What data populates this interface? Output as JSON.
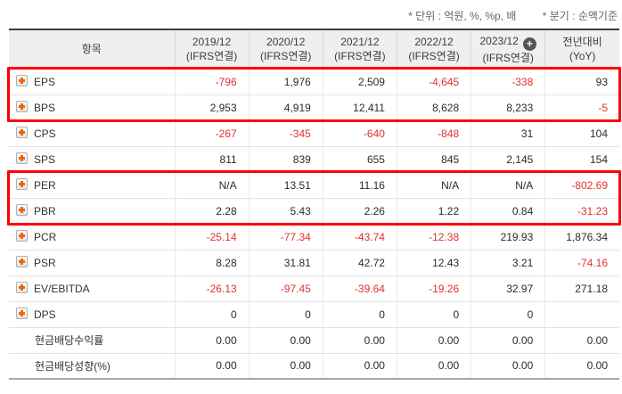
{
  "notes": {
    "unit": "* 단위 : 억원, %, %p, 배",
    "basis": "* 분기 : 순액기준"
  },
  "table": {
    "item_header": "항목",
    "columns": [
      {
        "period": "2019/12",
        "standard": "(IFRS연결)",
        "has_add_icon": false
      },
      {
        "period": "2020/12",
        "standard": "(IFRS연결)",
        "has_add_icon": false
      },
      {
        "period": "2021/12",
        "standard": "(IFRS연결)",
        "has_add_icon": false
      },
      {
        "period": "2022/12",
        "standard": "(IFRS연결)",
        "has_add_icon": false
      },
      {
        "period": "2023/12",
        "standard": "(IFRS연결)",
        "has_add_icon": true
      },
      {
        "period": "전년대비",
        "standard": "(YoY)",
        "has_add_icon": false
      }
    ],
    "add_icon_glyph": "+",
    "rows": [
      {
        "label": "EPS",
        "expandable": true,
        "values": [
          "-796",
          "1,976",
          "2,509",
          "-4,645",
          "-338",
          "93"
        ]
      },
      {
        "label": "BPS",
        "expandable": true,
        "values": [
          "2,953",
          "4,919",
          "12,411",
          "8,628",
          "8,233",
          "-5"
        ]
      },
      {
        "label": "CPS",
        "expandable": true,
        "values": [
          "-267",
          "-345",
          "-640",
          "-848",
          "31",
          "104"
        ]
      },
      {
        "label": "SPS",
        "expandable": true,
        "values": [
          "811",
          "839",
          "655",
          "845",
          "2,145",
          "154"
        ]
      },
      {
        "label": "PER",
        "expandable": true,
        "values": [
          "N/A",
          "13.51",
          "11.16",
          "N/A",
          "N/A",
          "-802.69"
        ]
      },
      {
        "label": "PBR",
        "expandable": true,
        "values": [
          "2.28",
          "5.43",
          "2.26",
          "1.22",
          "0.84",
          "-31.23"
        ]
      },
      {
        "label": "PCR",
        "expandable": true,
        "values": [
          "-25.14",
          "-77.34",
          "-43.74",
          "-12.38",
          "219.93",
          "1,876.34"
        ]
      },
      {
        "label": "PSR",
        "expandable": true,
        "values": [
          "8.28",
          "31.81",
          "42.72",
          "12.43",
          "3.21",
          "-74.16"
        ]
      },
      {
        "label": "EV/EBITDA",
        "expandable": true,
        "values": [
          "-26.13",
          "-97.45",
          "-39.64",
          "-19.26",
          "32.97",
          "271.18"
        ]
      },
      {
        "label": "DPS",
        "expandable": true,
        "values": [
          "0",
          "0",
          "0",
          "0",
          "0",
          ""
        ]
      },
      {
        "label": "현금배당수익률",
        "expandable": false,
        "values": [
          "0.00",
          "0.00",
          "0.00",
          "0.00",
          "0.00",
          "0.00"
        ]
      },
      {
        "label": "현금배당성향(%)",
        "expandable": false,
        "values": [
          "0.00",
          "0.00",
          "0.00",
          "0.00",
          "0.00",
          "0.00"
        ]
      }
    ],
    "highlights": [
      {
        "first_row": 0,
        "last_row": 1
      },
      {
        "first_row": 4,
        "last_row": 5
      }
    ]
  },
  "colors": {
    "negative": "#e03131",
    "highlight_border": "#ff0000",
    "expand_icon": "#f06700",
    "add_icon_bg": "#54565e"
  }
}
